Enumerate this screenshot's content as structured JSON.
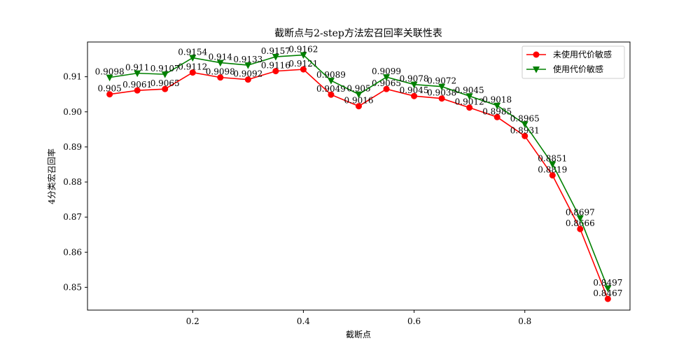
{
  "chart_data": {
    "type": "line",
    "title": "截断点与2-step方法宏召回率关联性表",
    "xlabel": "截断点",
    "ylabel": "4分类宏召回率",
    "xlim": [
      0.01,
      0.99
    ],
    "ylim": [
      0.8435,
      0.9199
    ],
    "xticks": [
      0.2,
      0.4,
      0.6,
      0.8
    ],
    "xtick_labels": [
      "0.2",
      "0.4",
      "0.6",
      "0.8"
    ],
    "yticks": [
      0.85,
      0.86,
      0.87,
      0.88,
      0.89,
      0.9,
      0.91
    ],
    "ytick_labels": [
      "0.85",
      "0.86",
      "0.87",
      "0.88",
      "0.89",
      "0.90",
      "0.91"
    ],
    "grid": false,
    "legend_position": "top-right",
    "x": [
      0.05,
      0.1,
      0.15,
      0.2,
      0.25,
      0.3,
      0.35,
      0.4,
      0.45,
      0.5,
      0.55,
      0.6,
      0.65,
      0.7,
      0.75,
      0.8,
      0.85,
      0.9,
      0.95
    ],
    "series": [
      {
        "name": "未使用代价敏感",
        "color": "#ff0000",
        "marker": "circle",
        "values": [
          0.905,
          0.9061,
          0.9065,
          0.9112,
          0.9098,
          0.9092,
          0.9116,
          0.9121,
          0.9049,
          0.9016,
          0.9065,
          0.9045,
          0.9038,
          0.9012,
          0.8985,
          0.8931,
          0.8819,
          0.8666,
          0.8467
        ],
        "labels": [
          "0.905",
          "0.9061",
          "0.9065",
          "0.9112",
          "0.9098",
          "0.9092",
          "0.9116",
          "0.9121",
          "0.9049",
          "0.9016",
          "0.9065",
          "0.9045",
          "0.9038",
          "0.9012",
          "0.8985",
          "0.8931",
          "0.8819",
          "0.8666",
          "0.8467"
        ]
      },
      {
        "name": "使用代价敏感",
        "color": "#008000",
        "marker": "triangle-down",
        "values": [
          0.9098,
          0.911,
          0.9107,
          0.9154,
          0.914,
          0.9133,
          0.9157,
          0.9162,
          0.9089,
          0.905,
          0.9099,
          0.9078,
          0.9072,
          0.9045,
          0.9018,
          0.8965,
          0.8851,
          0.8697,
          0.8497
        ],
        "labels": [
          "0.9098",
          "0.911",
          "0.9107",
          "0.9154",
          "0.914",
          "0.9133",
          "0.9157",
          "0.9162",
          "0.9089",
          "0.905",
          "0.9099",
          "0.9078",
          "0.9072",
          "0.9045",
          "0.9018",
          "0.8965",
          "0.8851",
          "0.8697",
          "0.8497"
        ]
      }
    ]
  }
}
